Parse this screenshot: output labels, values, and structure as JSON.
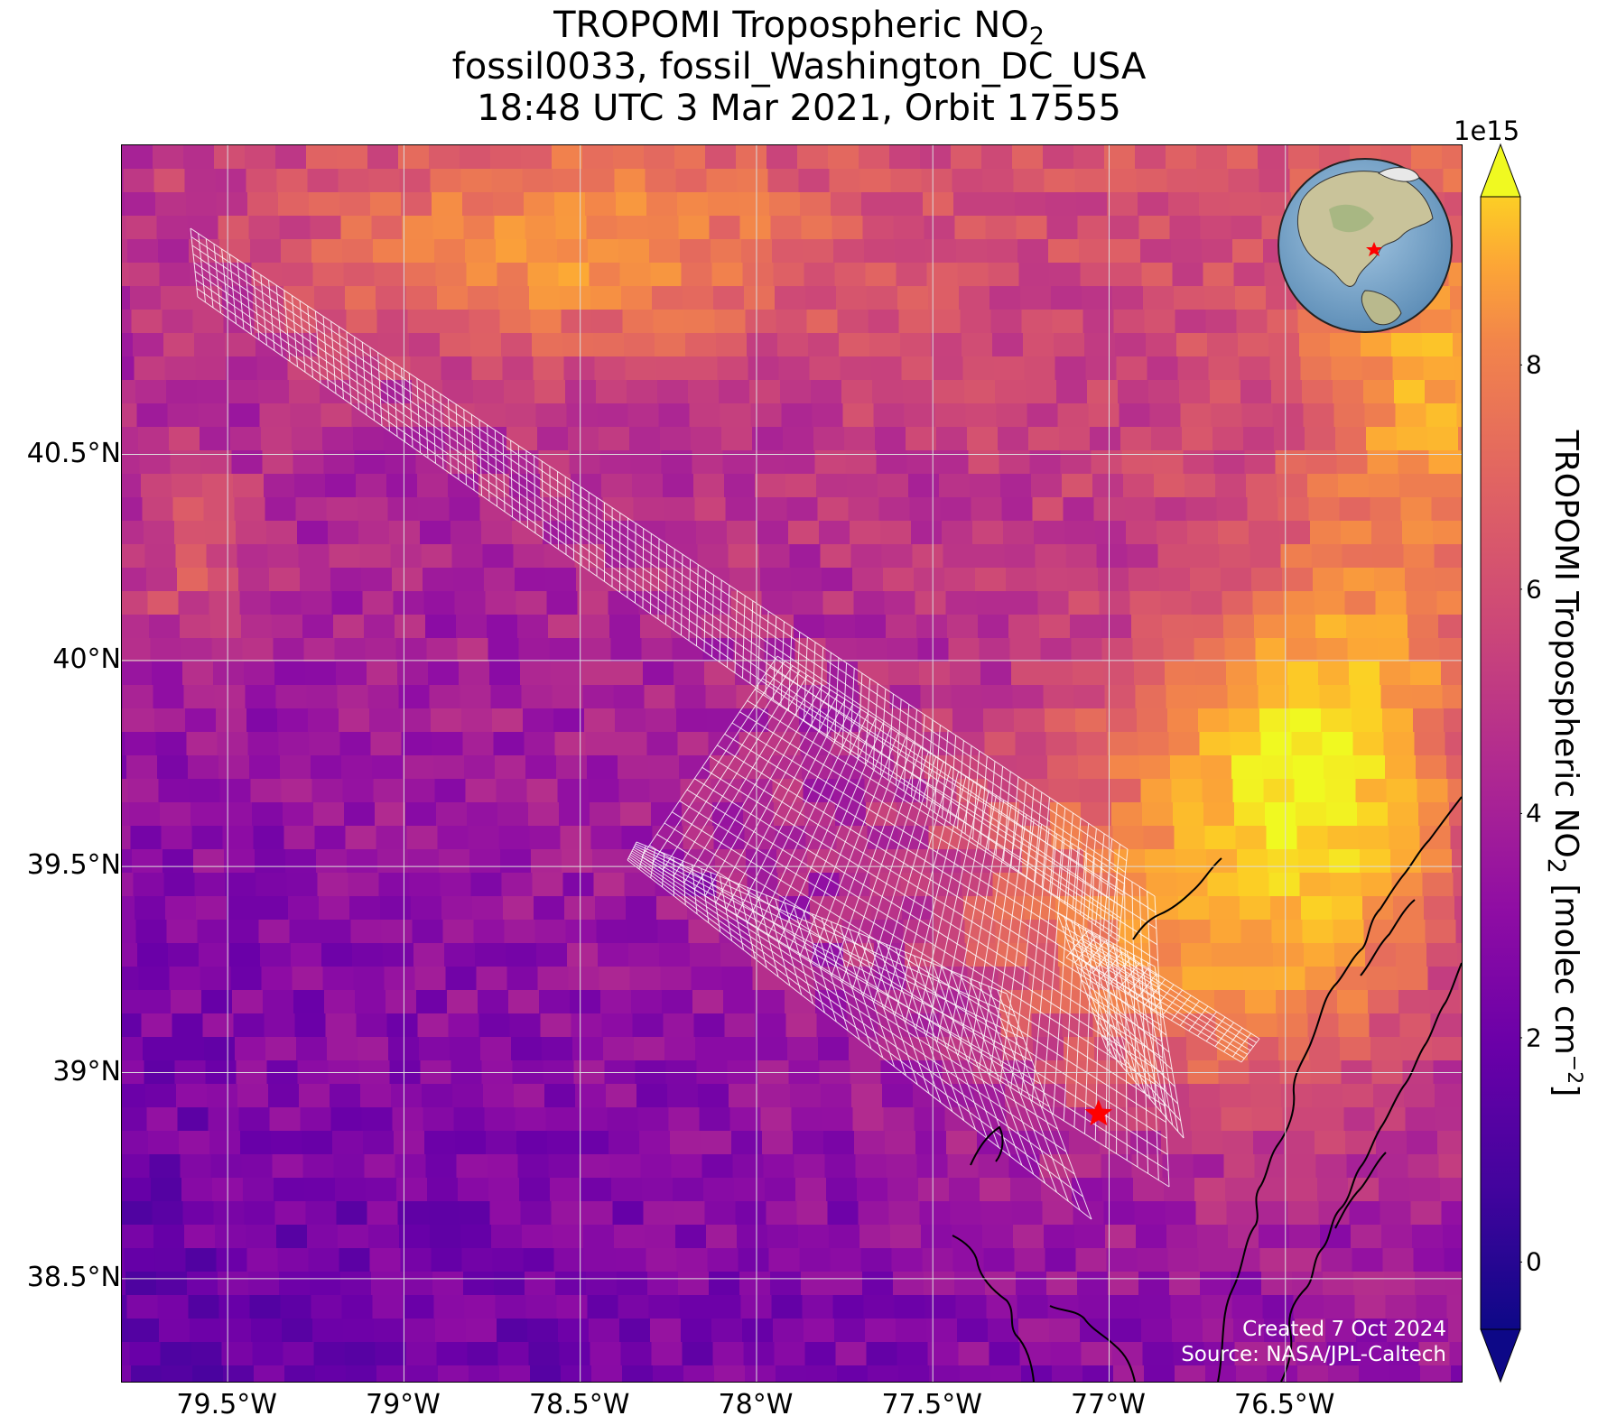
{
  "title": {
    "line1_prefix": "TROPOMI Tropospheric NO",
    "line1_sub": "2",
    "line2": "fossil0033, fossil_Washington_DC_USA",
    "line3": "18:48 UTC 3 Mar 2021, Orbit 17555"
  },
  "map": {
    "lon_range": [
      -79.8,
      -76.0
    ],
    "lat_range": [
      38.25,
      41.25
    ],
    "x_ticks": [
      "79.5°W",
      "79°W",
      "78.5°W",
      "78°W",
      "77.5°W",
      "77°W",
      "76.5°W"
    ],
    "x_tick_values": [
      -79.5,
      -79.0,
      -78.5,
      -78.0,
      -77.5,
      -77.0,
      -76.5
    ],
    "y_ticks": [
      "40.5°N",
      "40°N",
      "39.5°N",
      "39°N",
      "38.5°N"
    ],
    "y_tick_values": [
      40.5,
      40.0,
      39.5,
      39.0,
      38.5
    ],
    "colormap": "plasma",
    "gridlines": true,
    "target_marker": {
      "lon": -77.03,
      "lat": 38.9,
      "symbol": "red star",
      "color": "#ff0000"
    },
    "inset_globe": {
      "centered_on": "North America",
      "marker_color": "#ff0000"
    }
  },
  "colorbar": {
    "multiplier": "1e15",
    "ticks": [
      "0",
      "2",
      "4",
      "6",
      "8"
    ],
    "tick_values": [
      0,
      2,
      4,
      6,
      8
    ],
    "range": [
      -0.6,
      9.5
    ],
    "extend": "both",
    "label_prefix": "TROPOMI Tropospheric NO",
    "label_sub": "2",
    "label_mid": " [molec cm",
    "label_sup": "−2",
    "label_suffix": "]"
  },
  "credit": {
    "line1": "Created 7 Oct 2024",
    "line2": "Source: NASA/JPL-Caltech"
  }
}
